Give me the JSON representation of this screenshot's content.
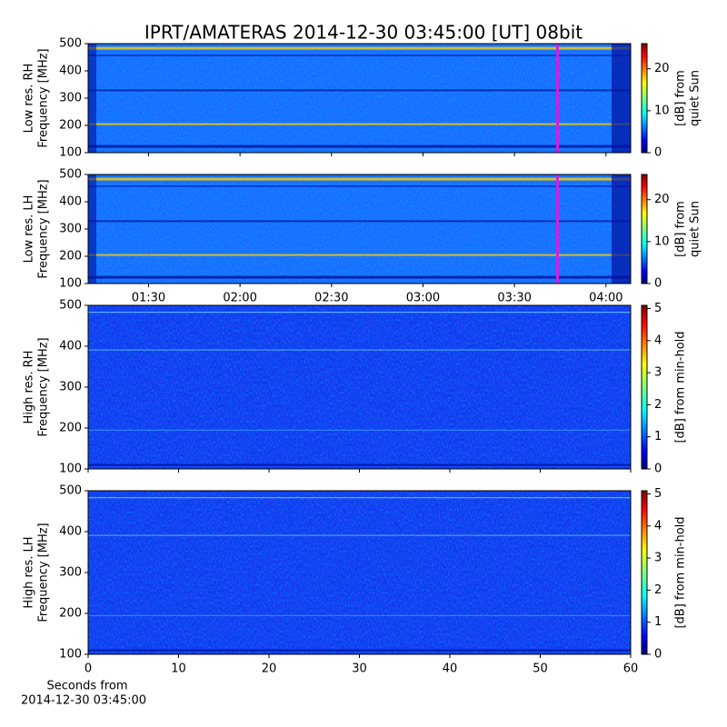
{
  "chart_data": [
    {
      "type": "heatmap",
      "title": "IPRT/AMATERAS 2014-12-30 03:45:00 [UT]   08bit",
      "ylabel": [
        "Low res. RH",
        "Frequency [MHz]"
      ],
      "ylim": [
        100,
        500
      ],
      "yticks": [
        100,
        200,
        300,
        400,
        500
      ],
      "xlim": [
        70.2,
        248.1
      ],
      "colorbar": {
        "label": [
          "[dB] from",
          "quiet Sun"
        ],
        "lim": [
          0,
          26
        ],
        "ticks": [
          0,
          10,
          20
        ]
      }
    },
    {
      "type": "heatmap",
      "ylabel": [
        "Low res. LH",
        "Frequency [MHz]"
      ],
      "ylim": [
        100,
        500
      ],
      "yticks": [
        100,
        200,
        300,
        400,
        500
      ],
      "xlim": [
        70.2,
        248.1
      ],
      "xticks": [
        {
          "value": 90,
          "label": "01:30"
        },
        {
          "value": 120,
          "label": "02:00"
        },
        {
          "value": 150,
          "label": "02:30"
        },
        {
          "value": 180,
          "label": "03:00"
        },
        {
          "value": 210,
          "label": "03:30"
        },
        {
          "value": 240,
          "label": "04:00"
        }
      ],
      "colorbar": {
        "label": [
          "[dB] from",
          "quiet Sun"
        ],
        "lim": [
          0,
          26
        ],
        "ticks": [
          0,
          10,
          20
        ]
      }
    },
    {
      "type": "heatmap",
      "ylabel": [
        "High res. RH",
        "Frequency [MHz]"
      ],
      "ylim": [
        100,
        500
      ],
      "yticks": [
        100,
        200,
        300,
        400,
        500
      ],
      "xlim": [
        0,
        60
      ],
      "colorbar": {
        "label": [
          "[dB] from min-hold"
        ],
        "lim": [
          0,
          5.1
        ],
        "ticks": [
          0,
          1,
          2,
          3,
          4,
          5
        ]
      }
    },
    {
      "type": "heatmap",
      "ylabel": [
        "High res. LH",
        "Frequency [MHz]"
      ],
      "ylim": [
        100,
        500
      ],
      "yticks": [
        100,
        200,
        300,
        400,
        500
      ],
      "xlim": [
        0,
        60
      ],
      "xticks": [
        0,
        10,
        20,
        30,
        40,
        50,
        60
      ],
      "xlabel": [
        "Seconds from",
        "2014-12-30 03:45:00"
      ],
      "colorbar": {
        "label": [
          "[dB] from min-hold"
        ],
        "lim": [
          0,
          5.1
        ],
        "ticks": [
          0,
          1,
          2,
          3,
          4,
          5
        ]
      }
    }
  ]
}
